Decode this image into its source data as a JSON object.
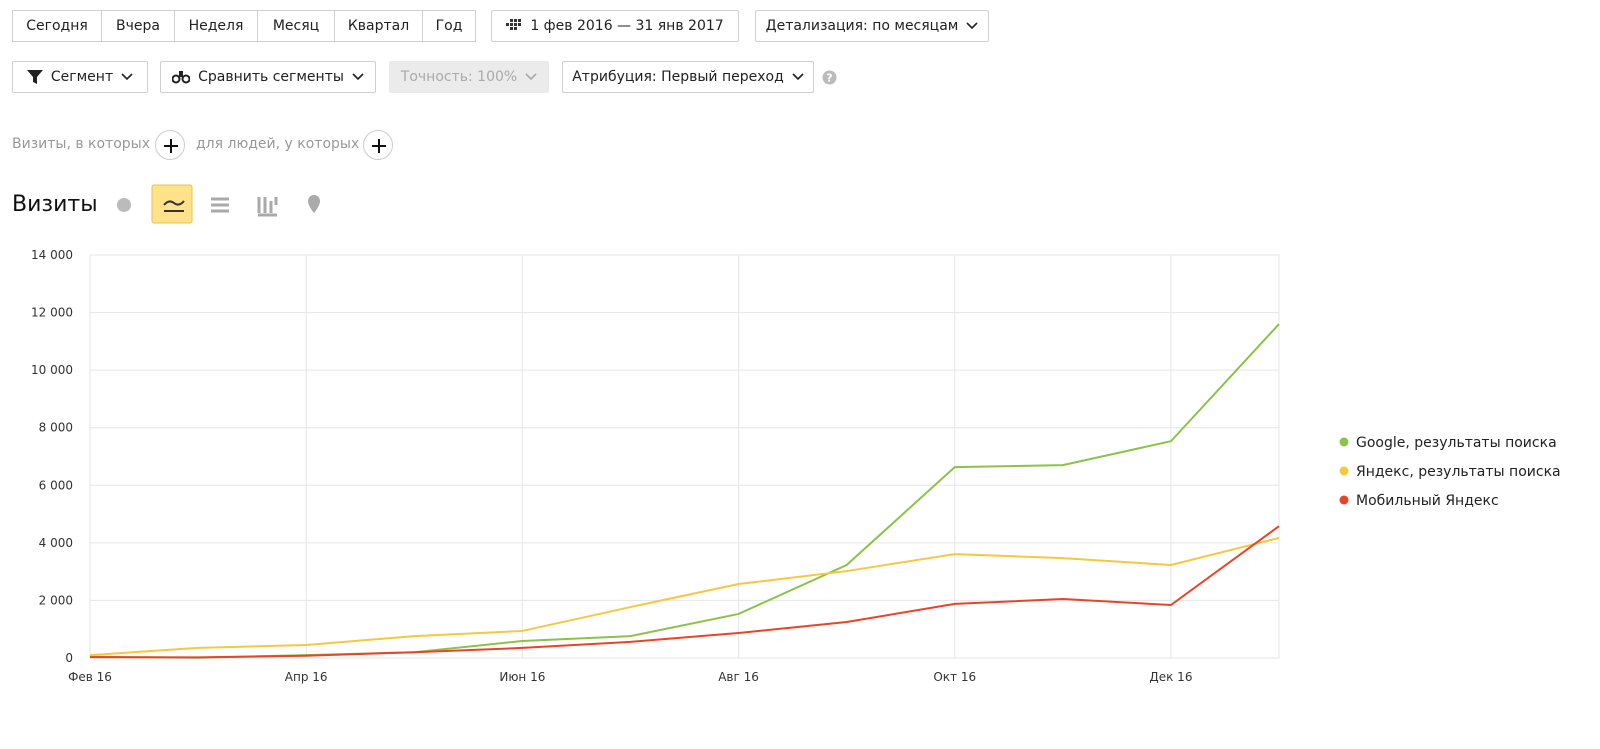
{
  "ui": {
    "periods": [
      "Сегодня",
      "Вчера",
      "Неделя",
      "Месяц",
      "Квартал",
      "Год"
    ],
    "date_range": "1 фев 2016 — 31 янв 2017",
    "detail": "Детализация: по месяцам",
    "segment": "Сегмент",
    "compare": "Сравнить сегменты",
    "accuracy": "Точность: 100%",
    "attribution": "Атрибуция: Первый переход",
    "filter_visits": "Визиты, в которых",
    "filter_people": "для людей, у которых"
  },
  "chart_data": {
    "type": "line",
    "title": "Визиты",
    "categories": [
      "Фев 16",
      null,
      "Апр 16",
      null,
      "Июн 16",
      null,
      "Авг 16",
      null,
      "Окт 16",
      null,
      "Дек 16",
      null
    ],
    "series": [
      {
        "name": "Google, результаты поиска",
        "color": "#8bc34a",
        "values": [
          40,
          10,
          100,
          200,
          590,
          760,
          1530,
          3230,
          6630,
          6700,
          7530,
          11600
        ]
      },
      {
        "name": "Яндекс, результаты поиска",
        "color": "#f5c842",
        "values": [
          100,
          350,
          450,
          760,
          940,
          1770,
          2570,
          3020,
          3610,
          3470,
          3230,
          4170
        ]
      },
      {
        "name": "Мобильный Яндекс",
        "color": "#e8442a",
        "values": [
          30,
          20,
          80,
          200,
          350,
          560,
          870,
          1250,
          1880,
          2050,
          1840,
          4580
        ]
      }
    ],
    "ylim": [
      0,
      14000
    ],
    "yticks": [
      0,
      {
        "value": 2000,
        "label": "2 000"
      },
      {
        "value": 4000,
        "label": "4 000"
      },
      {
        "value": 6000,
        "label": "6 000"
      },
      {
        "value": 8000,
        "label": "8 000"
      },
      {
        "value": 10000,
        "label": "10 000"
      },
      {
        "value": 12000,
        "label": "12 000"
      },
      {
        "value": 14000,
        "label": "14 000"
      }
    ],
    "grid": true,
    "legend": "right"
  }
}
